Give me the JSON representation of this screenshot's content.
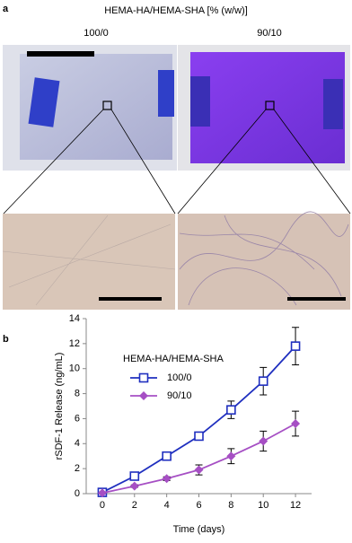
{
  "panel_a": {
    "label": "a",
    "title": "HEMA-HA/HEMA-SHA [% (w/w)]",
    "samples": [
      "100/0",
      "90/10"
    ]
  },
  "chart_data": {
    "type": "line",
    "label": "b",
    "x_label": "Time (days)",
    "y_label": "rSDF-1 Release (ng/mL)",
    "legend_title": "HEMA-HA/HEMA-SHA",
    "x": [
      0,
      2,
      4,
      6,
      8,
      10,
      12
    ],
    "series": [
      {
        "name": "100/0",
        "color": "#1f2fbf",
        "marker": "square",
        "values": [
          0.1,
          1.4,
          3.0,
          4.6,
          6.7,
          9.0,
          11.8
        ],
        "errors": [
          0.1,
          0.2,
          0.2,
          0.3,
          0.7,
          1.1,
          1.5
        ]
      },
      {
        "name": "90/10",
        "color": "#a64fc4",
        "marker": "diamond",
        "values": [
          0.05,
          0.6,
          1.2,
          1.9,
          3.0,
          4.2,
          5.6
        ],
        "errors": [
          0.05,
          0.1,
          0.15,
          0.4,
          0.6,
          0.8,
          1.0
        ]
      }
    ],
    "xlim": [
      -1,
      13
    ],
    "xticks": [
      0,
      2,
      4,
      6,
      8,
      10,
      12
    ],
    "ylim": [
      0,
      14
    ],
    "yticks": [
      0,
      2,
      4,
      6,
      8,
      10,
      12,
      14
    ]
  }
}
